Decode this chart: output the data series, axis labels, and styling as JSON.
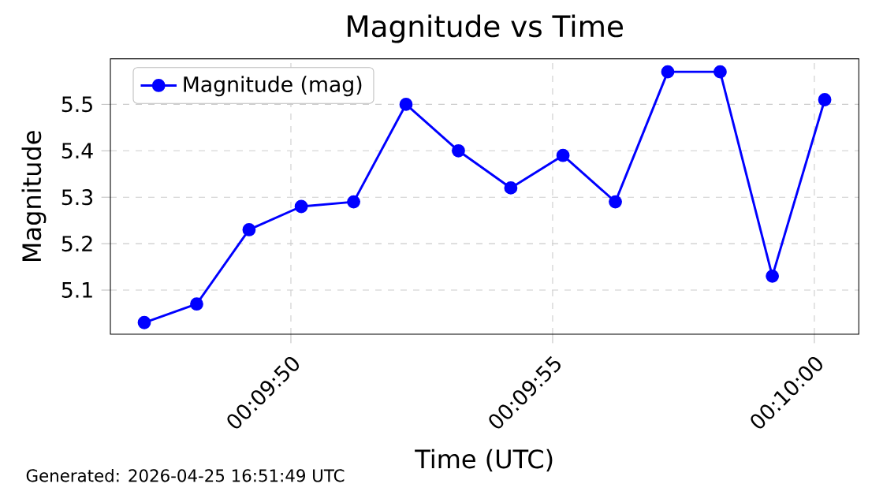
{
  "chart_data": {
    "type": "line",
    "title": "Magnitude vs Time",
    "xlabel": "Time (UTC)",
    "ylabel": "Magnitude",
    "x": [
      0.163111,
      0.163389,
      0.163667,
      0.163944,
      0.164222,
      0.1645,
      0.164778,
      0.165056,
      0.165333,
      0.165611,
      0.165889,
      0.166167,
      0.166444,
      0.166722
    ],
    "series": [
      {
        "name": "Magnitude (mag)",
        "color": "#0000ff",
        "values": [
          5.03,
          5.07,
          5.23,
          5.28,
          5.29,
          5.5,
          5.4,
          5.32,
          5.39,
          5.29,
          5.57,
          5.57,
          5.13,
          5.51
        ]
      }
    ],
    "xlim": [
      0.162931,
      0.166903
    ],
    "xticks": [
      {
        "value": 0.163889,
        "label": "00:09:50"
      },
      {
        "value": 0.165278,
        "label": "00:09:55"
      },
      {
        "value": 0.166667,
        "label": "00:10:00"
      }
    ],
    "ylim": [
      5.005,
      5.598
    ],
    "yticks": [
      5.1,
      5.2,
      5.3,
      5.4,
      5.5
    ],
    "grid": true,
    "legend": "top left",
    "marker": "circle",
    "line_style": "solid",
    "annotations": [
      "Generated: 2026-04-25 16:51:49 UTC"
    ]
  }
}
